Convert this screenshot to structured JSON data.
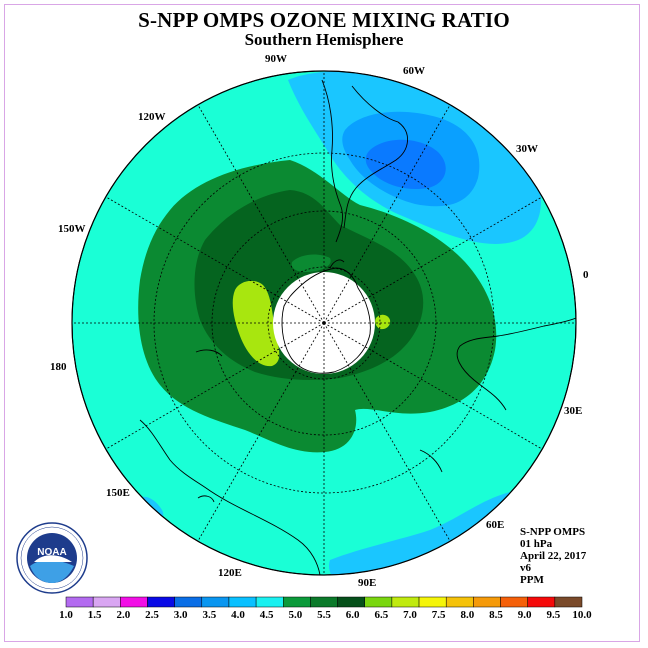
{
  "header": {
    "title": "S-NPP OMPS OZONE MIXING RATIO",
    "subtitle": "Southern Hemisphere"
  },
  "map": {
    "projection": "south-polar-stereographic",
    "longitude_labels": [
      "90W",
      "60W",
      "30W",
      "0",
      "30E",
      "60E",
      "90E",
      "120E",
      "150E",
      "180",
      "150W",
      "120W"
    ],
    "colors": {
      "ocean_fill": "#1affd6",
      "band_4_0_4_5": "#1ac6ff",
      "band_3_5_4_0": "#0aa0ff",
      "band_3_0_3_5": "#0a7aff",
      "band_5_0_5_5": "#0b8a32",
      "band_5_5_6_0": "#05641f",
      "band_6_0_6_5": "#a8e60f",
      "pole_mask": "#ffffff",
      "coastline": "#000000",
      "grid": "#000000"
    }
  },
  "info": {
    "lines": [
      "S-NPP OMPS",
      "01 hPa",
      "April 22, 2017",
      "v6",
      "PPM"
    ]
  },
  "logo": {
    "name": "noaa-logo",
    "text": "NOAA",
    "ring_text": "NATIONAL OCEANIC AND ATMOSPHERIC ADMINISTRATION · U.S. DEPARTMENT OF COMMERCE"
  },
  "colorbar": {
    "labels": [
      "1.0",
      "1.5",
      "2.0",
      "2.5",
      "3.0",
      "3.5",
      "4.0",
      "4.5",
      "5.0",
      "5.5",
      "6.0",
      "6.5",
      "7.0",
      "7.5",
      "8.0",
      "8.5",
      "9.0",
      "9.5",
      "10.0"
    ],
    "colors": [
      "#b36bf0",
      "#d9a6f2",
      "#f20fe6",
      "#0a0ae6",
      "#0a6ee6",
      "#0a96f0",
      "#0ac0ff",
      "#1af0f0",
      "#0b9a3a",
      "#0b7a2a",
      "#05501a",
      "#7ad60f",
      "#c0ea0f",
      "#f5f50a",
      "#f5c20a",
      "#f59a0a",
      "#f5600a",
      "#f50a0a",
      "#7a4a2a"
    ]
  }
}
